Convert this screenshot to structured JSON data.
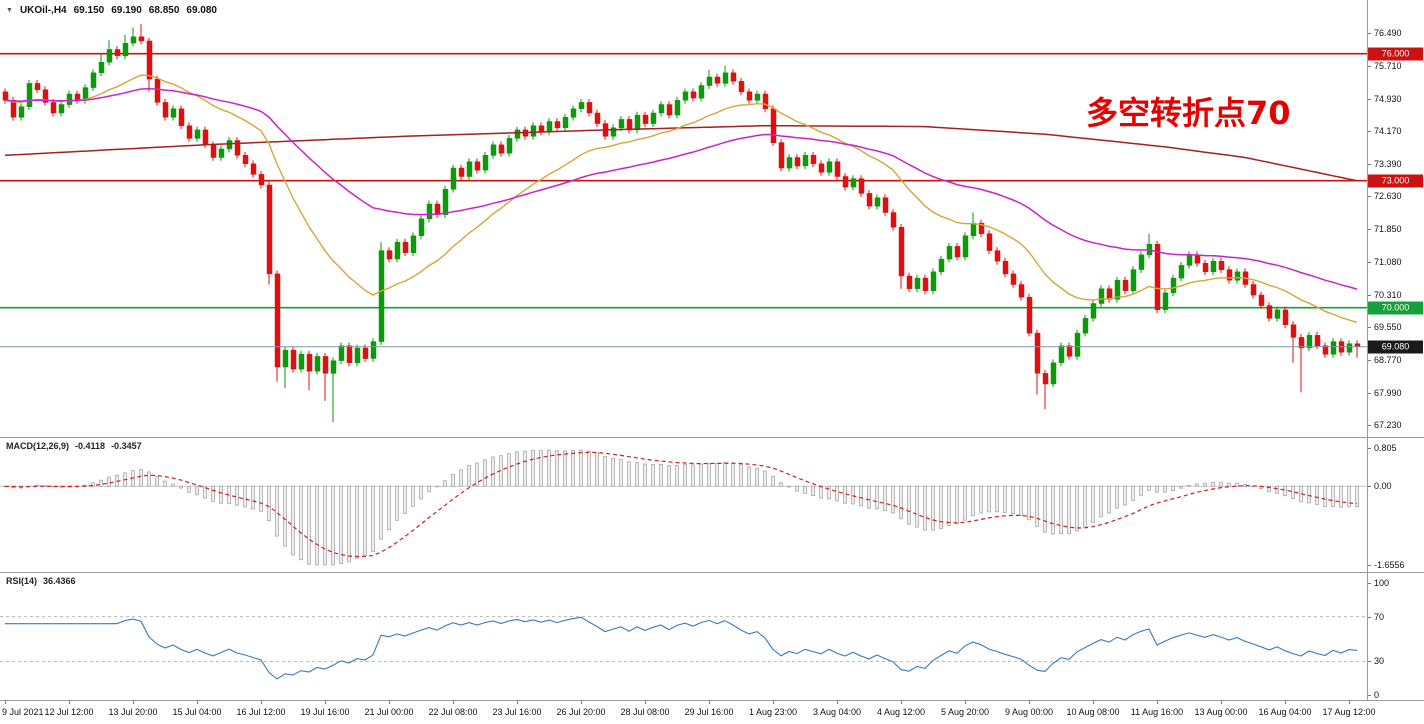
{
  "window": {
    "collapse_icon": "▼",
    "title": "UKOil-,H4",
    "open": "69.150",
    "high": "69.190",
    "low": "68.850",
    "close": "69.080"
  },
  "annotation": {
    "text": "多空转折点70",
    "color": "#e60000"
  },
  "colors": {
    "up": "#0a9a0a",
    "down": "#e01010",
    "ma_orange": "#d8a437",
    "ma_magenta": "#cc22cc",
    "ma_darkred": "#a52020",
    "level_red": "#cc1111",
    "level_green": "#16a03c",
    "current_line": "#7f98a8",
    "current_tag_bg": "#1a1a1a",
    "macd_hist_stroke": "#a8a8a8",
    "macd_hist_fill": "#efefef",
    "macd_signal": "#cc2222",
    "macd_zero": "#c8c8c8",
    "rsi_line": "#3779c2",
    "rsi_level": "#b8b8b8"
  },
  "chart_data": {
    "type": "candlestick",
    "symbol": "UKOil-",
    "timeframe": "H4",
    "price_axis": {
      "ylim": [
        67.23,
        76.49
      ],
      "ticks": [
        {
          "v": 76.49,
          "label": "76.490"
        },
        {
          "v": 75.71,
          "label": "75.710"
        },
        {
          "v": 74.93,
          "label": "74.930"
        },
        {
          "v": 74.17,
          "label": "74.170"
        },
        {
          "v": 73.39,
          "label": "73.390"
        },
        {
          "v": 72.63,
          "label": "72.630"
        },
        {
          "v": 71.85,
          "label": "71.850"
        },
        {
          "v": 71.08,
          "label": "71.080"
        },
        {
          "v": 70.31,
          "label": "70.310"
        },
        {
          "v": 69.55,
          "label": "69.550"
        },
        {
          "v": 68.77,
          "label": "68.770"
        },
        {
          "v": 67.99,
          "label": "67.990"
        },
        {
          "v": 67.23,
          "label": "67.230"
        }
      ]
    },
    "levels": [
      {
        "v": 76.0,
        "label": "76.000",
        "color": "#cc1111"
      },
      {
        "v": 73.0,
        "label": "73.000",
        "color": "#cc1111"
      },
      {
        "v": 70.0,
        "label": "70.000",
        "color": "#16a03c"
      }
    ],
    "current_price": {
      "v": 69.08,
      "label": "69.080"
    },
    "time_axis": {
      "candles_per_label": 8,
      "labels": [
        "9 Jul 2021",
        "12 Jul 12:00",
        "13 Jul 20:00",
        "15 Jul 04:00",
        "16 Jul 12:00",
        "19 Jul 16:00",
        "21 Jul 00:00",
        "22 Jul 08:00",
        "23 Jul 16:00",
        "26 Jul 20:00",
        "28 Jul 08:00",
        "29 Jul 16:00",
        "1 Aug 23:00",
        "3 Aug 04:00",
        "4 Aug 12:00",
        "5 Aug 20:00",
        "9 Aug 00:00",
        "10 Aug 08:00",
        "11 Aug 16:00",
        "13 Aug 00:00",
        "16 Aug 04:00",
        "17 Aug 12:00"
      ]
    },
    "price": {
      "first_open": 75.1,
      "default_wick": 0.08,
      "closes": [
        74.9,
        74.5,
        74.75,
        75.3,
        75.15,
        74.85,
        74.6,
        74.8,
        75.05,
        74.9,
        75.2,
        75.55,
        75.8,
        76.1,
        75.95,
        76.25,
        76.4,
        76.3,
        75.4,
        74.85,
        74.5,
        74.7,
        74.3,
        74.0,
        74.2,
        73.85,
        73.55,
        73.75,
        73.95,
        73.6,
        73.4,
        73.15,
        72.9,
        70.8,
        68.6,
        69.0,
        68.55,
        68.9,
        68.5,
        68.85,
        68.45,
        68.75,
        69.1,
        68.7,
        69.05,
        68.8,
        69.2,
        71.35,
        71.15,
        71.55,
        71.3,
        71.7,
        72.1,
        72.45,
        72.2,
        72.8,
        73.3,
        73.1,
        73.45,
        73.25,
        73.6,
        73.85,
        73.65,
        74.0,
        74.2,
        74.05,
        74.3,
        74.15,
        74.4,
        74.25,
        74.5,
        74.7,
        74.85,
        74.6,
        74.35,
        74.05,
        74.25,
        74.45,
        74.2,
        74.55,
        74.35,
        74.6,
        74.8,
        74.55,
        74.9,
        75.1,
        74.95,
        75.25,
        75.45,
        75.3,
        75.55,
        75.35,
        75.1,
        74.9,
        75.05,
        74.7,
        73.9,
        73.3,
        73.55,
        73.35,
        73.6,
        73.4,
        73.2,
        73.45,
        73.1,
        72.85,
        73.05,
        72.7,
        72.4,
        72.6,
        72.25,
        71.9,
        70.75,
        70.45,
        70.7,
        70.4,
        70.85,
        71.15,
        71.45,
        71.2,
        71.7,
        72.0,
        71.75,
        71.35,
        71.1,
        70.8,
        70.55,
        70.25,
        69.4,
        68.45,
        68.2,
        68.7,
        69.1,
        68.85,
        69.4,
        69.75,
        70.1,
        70.45,
        70.2,
        70.65,
        70.4,
        70.9,
        71.25,
        71.5,
        69.95,
        70.35,
        70.7,
        71.0,
        71.25,
        71.05,
        70.85,
        71.1,
        70.9,
        70.65,
        70.85,
        70.55,
        70.3,
        70.05,
        69.75,
        69.95,
        69.6,
        69.3,
        69.05,
        69.35,
        69.1,
        68.9,
        69.2,
        68.95,
        69.15,
        69.08
      ],
      "wick_overrides": {
        "12": {
          "h": 76.0
        },
        "13": {
          "h": 76.32
        },
        "15": {
          "h": 76.45
        },
        "16": {
          "h": 76.62
        },
        "17": {
          "h": 76.7
        },
        "18": {
          "l": 75.1
        },
        "33": {
          "l": 70.55
        },
        "34": {
          "l": 68.25
        },
        "35": {
          "l": 68.1
        },
        "38": {
          "l": 68.05
        },
        "40": {
          "l": 67.8
        },
        "41": {
          "l": 67.3
        },
        "47": {
          "h": 71.55
        },
        "88": {
          "h": 75.62
        },
        "90": {
          "h": 75.72
        },
        "112": {
          "l": 70.45
        },
        "121": {
          "h": 72.25
        },
        "129": {
          "l": 67.95
        },
        "130": {
          "l": 67.6
        },
        "143": {
          "h": 71.75
        },
        "161": {
          "l": 68.7
        },
        "162": {
          "l": 68.0
        },
        "169": {
          "l": 68.82
        }
      }
    },
    "moving_averages": {
      "orange_ema_period": 21,
      "magenta_ema_period": 55,
      "darkred_anchors": [
        [
          0,
          73.6
        ],
        [
          25,
          73.85
        ],
        [
          50,
          74.05
        ],
        [
          75,
          74.2
        ],
        [
          95,
          74.3
        ],
        [
          115,
          74.28
        ],
        [
          130,
          74.1
        ],
        [
          145,
          73.8
        ],
        [
          155,
          73.55
        ],
        [
          169,
          73.0
        ]
      ]
    },
    "indicators": {
      "macd": {
        "label": "MACD(12,26,9)",
        "value1": "-0.4118",
        "value2": "-0.3457",
        "fast": 12,
        "slow": 26,
        "signal": 9,
        "ylim": [
          -1.6556,
          0.805
        ],
        "ticks": [
          {
            "v": 0.805,
            "label": "0.805"
          },
          {
            "v": 0,
            "label": "0.00"
          },
          {
            "v": -1.6556,
            "label": "-1.6556"
          }
        ]
      },
      "rsi": {
        "label": "RSI(14)",
        "value": "36.4366",
        "period": 14,
        "levels": [
          70,
          30
        ],
        "ylim": [
          0,
          100
        ],
        "ticks": [
          {
            "v": 100,
            "label": "100"
          },
          {
            "v": 70,
            "label": "70"
          },
          {
            "v": 30,
            "label": "30"
          },
          {
            "v": 0,
            "label": "0"
          }
        ]
      }
    }
  }
}
